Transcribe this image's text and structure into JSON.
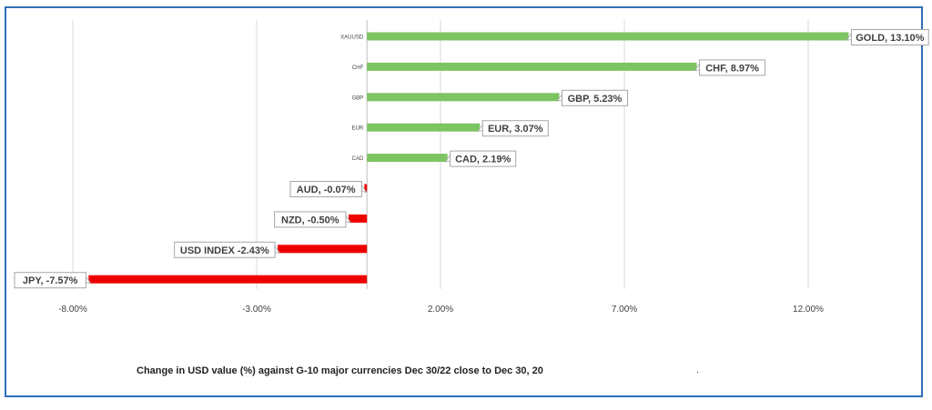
{
  "chart_data": {
    "type": "bar",
    "orientation": "horizontal",
    "categories": [
      "XAUUSD",
      "CHF",
      "GBP",
      "EUR",
      "CAD",
      "AUD",
      "NZD",
      "USD INDEX",
      "JPY"
    ],
    "values": [
      13.1,
      8.97,
      5.23,
      3.07,
      2.19,
      -0.07,
      -0.5,
      -2.43,
      -7.57
    ],
    "data_labels": [
      "GOLD, 13.10%",
      "CHF, 8.97%",
      "GBP, 5.23%",
      "EUR, 3.07%",
      "CAD, 2.19%",
      "AUD, -0.07%",
      "NZD, -0.50%",
      "USD INDEX -2.43%",
      "JPY, -7.57%"
    ],
    "x_ticks": [
      -8,
      -3,
      2,
      7,
      12
    ],
    "x_tick_labels": [
      "-8.00%",
      "-3.00%",
      "2.00%",
      "7.00%",
      "12.00%"
    ],
    "xlim": [
      -9,
      14
    ],
    "title": "",
    "xlabel": "",
    "ylabel": "",
    "grid": "vertical",
    "legend": "none",
    "colors": {
      "positive": "#7dc462",
      "negative": "#ee0000",
      "grid": "#d9d9d9",
      "frame": "#2f6fb6",
      "label_border": "#a6a6a6"
    }
  },
  "caption": "Change in  USD value (%)  against  G-10 major currencies Dec 30/22  close to Dec 30, 20",
  "caption_mark": "."
}
